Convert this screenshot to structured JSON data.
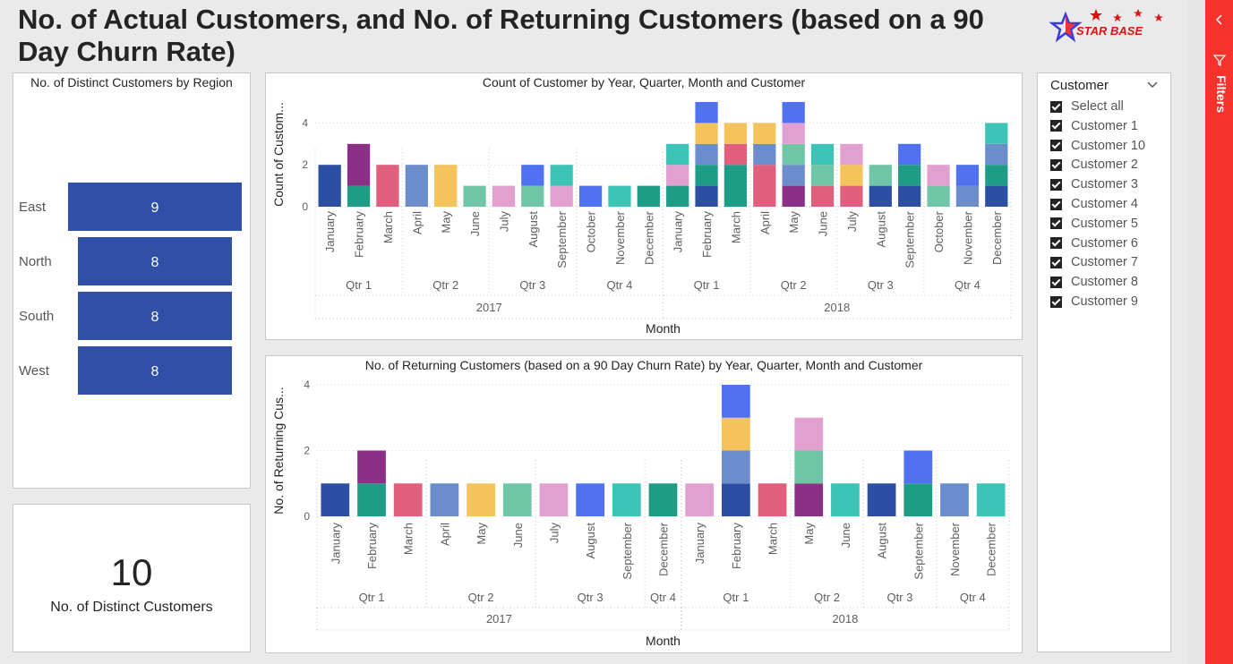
{
  "page": {
    "title": "No. of Actual Customers, and No. of Returning Customers (based on a 90 Day Churn Rate)",
    "logo_text": "STAR BASE"
  },
  "region_chart": {
    "title": "No. of Distinct Customers by Region",
    "max": 9,
    "items": [
      {
        "region": "East",
        "value": "9"
      },
      {
        "region": "North",
        "value": "8"
      },
      {
        "region": "South",
        "value": "8"
      },
      {
        "region": "West",
        "value": "8"
      }
    ]
  },
  "card": {
    "value": "10",
    "label": "No. of Distinct Customers"
  },
  "slicer": {
    "title": "Customer",
    "items": [
      "Select all",
      "Customer 1",
      "Customer 10",
      "Customer 2",
      "Customer 3",
      "Customer 4",
      "Customer 5",
      "Customer 6",
      "Customer 7",
      "Customer 8",
      "Customer 9"
    ]
  },
  "filters": {
    "label": "Filters"
  },
  "colors": {
    "C1": "#2c4fa4",
    "C2": "#1f9c86",
    "C3": "#df5f7c",
    "C4": "#6b8dcc",
    "C5": "#f4c35c",
    "C6": "#6fc6a6",
    "C7": "#e1a0cf",
    "C8": "#5072f2",
    "C9": "#3cc4b7",
    "C10": "#8c2f86",
    "accent": "#f5322b",
    "bar": "#3050a8"
  },
  "chart_data": [
    {
      "type": "bar",
      "stacked": true,
      "title": "Count of Customer by Year, Quarter, Month and Customer",
      "xlabel": "Month",
      "ylabel": "Count of Custom...",
      "ylim": [
        0,
        5
      ],
      "yticks": [
        0,
        2,
        4
      ],
      "years": [
        {
          "label": "2017",
          "quarters": [
            {
              "label": "Qtr 1",
              "months": [
                "January",
                "February",
                "March"
              ]
            },
            {
              "label": "Qtr 2",
              "months": [
                "April",
                "May",
                "June"
              ]
            },
            {
              "label": "Qtr 3",
              "months": [
                "July",
                "August",
                "September"
              ]
            },
            {
              "label": "Qtr 4",
              "months": [
                "October",
                "November",
                "December"
              ]
            }
          ]
        },
        {
          "label": "2018",
          "quarters": [
            {
              "label": "Qtr 1",
              "months": [
                "January",
                "February",
                "March"
              ]
            },
            {
              "label": "Qtr 2",
              "months": [
                "April",
                "May",
                "June"
              ]
            },
            {
              "label": "Qtr 3",
              "months": [
                "July",
                "August",
                "September"
              ]
            },
            {
              "label": "Qtr 4",
              "months": [
                "October",
                "November",
                "December"
              ]
            }
          ]
        }
      ],
      "stacks": [
        [
          [
            "C1",
            2
          ]
        ],
        [
          [
            "C2",
            1
          ],
          [
            "C10",
            2
          ]
        ],
        [
          [
            "C3",
            2
          ]
        ],
        [
          [
            "C4",
            2
          ]
        ],
        [
          [
            "C5",
            2
          ]
        ],
        [
          [
            "C6",
            1
          ]
        ],
        [
          [
            "C7",
            1
          ]
        ],
        [
          [
            "C6",
            1
          ],
          [
            "C8",
            1
          ]
        ],
        [
          [
            "C7",
            1
          ],
          [
            "C9",
            1
          ]
        ],
        [
          [
            "C8",
            1
          ]
        ],
        [
          [
            "C9",
            1
          ]
        ],
        [
          [
            "C2",
            1
          ]
        ],
        [
          [
            "C2",
            1
          ],
          [
            "C7",
            1
          ],
          [
            "C9",
            1
          ]
        ],
        [
          [
            "C1",
            1
          ],
          [
            "C2",
            1
          ],
          [
            "C4",
            1
          ],
          [
            "C5",
            1
          ],
          [
            "C8",
            1
          ]
        ],
        [
          [
            "C2",
            2
          ],
          [
            "C3",
            1
          ],
          [
            "C5",
            1
          ]
        ],
        [
          [
            "C3",
            2
          ],
          [
            "C4",
            1
          ],
          [
            "C5",
            1
          ]
        ],
        [
          [
            "C10",
            1
          ],
          [
            "C4",
            1
          ],
          [
            "C6",
            1
          ],
          [
            "C7",
            1
          ],
          [
            "C8",
            1
          ]
        ],
        [
          [
            "C3",
            1
          ],
          [
            "C6",
            1
          ],
          [
            "C9",
            1
          ]
        ],
        [
          [
            "C3",
            1
          ],
          [
            "C5",
            1
          ],
          [
            "C7",
            1
          ]
        ],
        [
          [
            "C1",
            1
          ],
          [
            "C6",
            1
          ]
        ],
        [
          [
            "C1",
            1
          ],
          [
            "C2",
            1
          ],
          [
            "C8",
            1
          ]
        ],
        [
          [
            "C6",
            1
          ],
          [
            "C7",
            1
          ]
        ],
        [
          [
            "C4",
            1
          ],
          [
            "C8",
            1
          ]
        ],
        [
          [
            "C1",
            1
          ],
          [
            "C2",
            1
          ],
          [
            "C4",
            1
          ],
          [
            "C9",
            1
          ]
        ]
      ]
    },
    {
      "type": "bar",
      "stacked": true,
      "title": "No. of Returning Customers (based on a 90 Day Churn Rate) by Year, Quarter, Month and Customer",
      "xlabel": "Month",
      "ylabel": "No. of Returning Cus...",
      "ylim": [
        0,
        4
      ],
      "yticks": [
        0,
        2,
        4
      ],
      "years": [
        {
          "label": "2017",
          "quarters": [
            {
              "label": "Qtr 1",
              "months": [
                "January",
                "February",
                "March"
              ]
            },
            {
              "label": "Qtr 2",
              "months": [
                "April",
                "May",
                "June"
              ]
            },
            {
              "label": "Qtr 3",
              "months": [
                "July",
                "August",
                "September"
              ]
            },
            {
              "label": "Qtr 4",
              "months": [
                "December"
              ]
            }
          ]
        },
        {
          "label": "2018",
          "quarters": [
            {
              "label": "Qtr 1",
              "months": [
                "January",
                "February",
                "March"
              ]
            },
            {
              "label": "Qtr 2",
              "months": [
                "May",
                "June"
              ]
            },
            {
              "label": "Qtr 3",
              "months": [
                "August",
                "September"
              ]
            },
            {
              "label": "Qtr 4",
              "months": [
                "November",
                "December"
              ]
            }
          ]
        }
      ],
      "stacks": [
        [
          [
            "C1",
            1
          ]
        ],
        [
          [
            "C2",
            1
          ],
          [
            "C10",
            1
          ]
        ],
        [
          [
            "C3",
            1
          ]
        ],
        [
          [
            "C4",
            1
          ]
        ],
        [
          [
            "C5",
            1
          ]
        ],
        [
          [
            "C6",
            1
          ]
        ],
        [
          [
            "C7",
            1
          ]
        ],
        [
          [
            "C8",
            1
          ]
        ],
        [
          [
            "C9",
            1
          ]
        ],
        [
          [
            "C2",
            1
          ]
        ],
        [
          [
            "C7",
            1
          ]
        ],
        [
          [
            "C1",
            1
          ],
          [
            "C4",
            1
          ],
          [
            "C5",
            1
          ],
          [
            "C8",
            1
          ]
        ],
        [
          [
            "C3",
            1
          ]
        ],
        [
          [
            "C10",
            1
          ],
          [
            "C6",
            1
          ],
          [
            "C7",
            1
          ]
        ],
        [
          [
            "C9",
            1
          ]
        ],
        [
          [
            "C1",
            1
          ]
        ],
        [
          [
            "C2",
            1
          ],
          [
            "C8",
            1
          ]
        ],
        [
          [
            "C4",
            1
          ]
        ],
        [
          [
            "C9",
            1
          ]
        ]
      ]
    }
  ]
}
